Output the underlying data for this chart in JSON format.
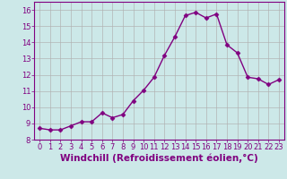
{
  "x": [
    0,
    1,
    2,
    3,
    4,
    5,
    6,
    7,
    8,
    9,
    10,
    11,
    12,
    13,
    14,
    15,
    16,
    17,
    18,
    19,
    20,
    21,
    22,
    23
  ],
  "y": [
    8.7,
    8.6,
    8.6,
    8.85,
    9.1,
    9.1,
    9.65,
    9.35,
    9.55,
    10.4,
    11.05,
    11.85,
    13.2,
    14.35,
    15.65,
    15.85,
    15.5,
    15.75,
    13.85,
    13.35,
    11.85,
    11.75,
    11.4,
    11.7
  ],
  "line_color": "#990099",
  "marker": "D",
  "markersize": 2.5,
  "linewidth": 1.0,
  "xlabel": "Windchill (Refroidissement éolien,°C)",
  "ylim": [
    8,
    16.5
  ],
  "xlim": [
    -0.5,
    23.5
  ],
  "yticks": [
    8,
    9,
    10,
    11,
    12,
    13,
    14,
    15,
    16
  ],
  "xticks": [
    0,
    1,
    2,
    3,
    4,
    5,
    6,
    7,
    8,
    9,
    10,
    11,
    12,
    13,
    14,
    15,
    16,
    17,
    18,
    19,
    20,
    21,
    22,
    23
  ],
  "bg_color": "#cce8e8",
  "grid_color": "#b0b0b0",
  "line_label_color": "#800080",
  "border_color": "#800080",
  "xlabel_fontsize": 7.5,
  "tick_fontsize": 6.0
}
